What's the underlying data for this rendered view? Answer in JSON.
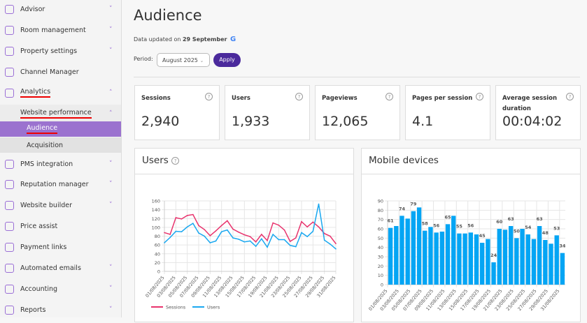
{
  "sidebar": {
    "items": [
      {
        "label": "Advisor",
        "icon": "heart-pulse-icon",
        "chevron": "down"
      },
      {
        "label": "Room management",
        "icon": "calendar-icon",
        "chevron": "down"
      },
      {
        "label": "Property settings",
        "icon": "home-icon",
        "chevron": "down"
      },
      {
        "label": "Channel Manager",
        "icon": "sitemap-icon",
        "chevron": ""
      },
      {
        "label": "Analytics",
        "icon": "target-icon",
        "chevron": "up"
      },
      {
        "label": "Website performance",
        "chevron": "up"
      },
      {
        "label": "Audience"
      },
      {
        "label": "Acquisition"
      },
      {
        "label": "PMS integration",
        "icon": "globe-icon",
        "chevron": "down"
      },
      {
        "label": "Reputation manager",
        "icon": "chat-icon",
        "chevron": "down"
      },
      {
        "label": "Website builder",
        "icon": "monitor-icon",
        "chevron": "down"
      },
      {
        "label": "Price assist",
        "icon": "trend-chart-icon",
        "chevron": ""
      },
      {
        "label": "Payment links",
        "icon": "clipboard-icon",
        "chevron": ""
      },
      {
        "label": "Automated emails",
        "icon": "envelope-icon",
        "chevron": "down"
      },
      {
        "label": "Accounting",
        "icon": "folder-check-icon",
        "chevron": "down"
      },
      {
        "label": "Reports",
        "icon": "bar-chart-icon",
        "chevron": "down"
      }
    ]
  },
  "header": {
    "title": "Audience",
    "updated_prefix": "Data updated on",
    "updated_date": "29 September",
    "period_label": "Period:",
    "period_value": "August 2025",
    "apply": "Apply"
  },
  "cards": [
    {
      "title": "Sessions",
      "value": "2,940"
    },
    {
      "title": "Users",
      "value": "1,933"
    },
    {
      "title": "Pageviews",
      "value": "12,065"
    },
    {
      "title": "Pages per session",
      "value": "4.1"
    },
    {
      "title": "Average session duration",
      "value": "00:04:02"
    }
  ],
  "colors": {
    "accent": "#4b2a9c",
    "sidebar_active": "#9b72cf",
    "sessions": "#e8336d",
    "users": "#1aa8f0",
    "bars": "#04a5f4"
  },
  "chart_data": [
    {
      "type": "line",
      "title": "Users",
      "ylim": [
        0,
        160
      ],
      "yticks": [
        0,
        20,
        40,
        60,
        80,
        100,
        120,
        140,
        160
      ],
      "grid": true,
      "legend": "bottom",
      "x": [
        "01/08/2025",
        "02/08/2025",
        "03/08/2025",
        "04/08/2025",
        "05/08/2025",
        "06/08/2025",
        "07/08/2025",
        "08/08/2025",
        "09/08/2025",
        "10/08/2025",
        "11/08/2025",
        "12/08/2025",
        "13/08/2025",
        "14/08/2025",
        "15/08/2025",
        "16/08/2025",
        "17/08/2025",
        "18/08/2025",
        "19/08/2025",
        "20/08/2025",
        "21/08/2025",
        "22/08/2025",
        "23/08/2025",
        "24/08/2025",
        "25/08/2025",
        "26/08/2025",
        "27/08/2025",
        "28/08/2025",
        "29/08/2025",
        "30/08/2025",
        "31/08/2025"
      ],
      "series": [
        {
          "name": "Sessions",
          "values": [
            88,
            84,
            122,
            119,
            127,
            129,
            104,
            95,
            81,
            92,
            104,
            115,
            96,
            89,
            83,
            79,
            67,
            84,
            70,
            110,
            105,
            94,
            68,
            76,
            113,
            101,
            112,
            101,
            86,
            80,
            63
          ]
        },
        {
          "name": "Users",
          "values": [
            65,
            77,
            91,
            90,
            101,
            109,
            87,
            80,
            65,
            69,
            90,
            94,
            76,
            73,
            67,
            69,
            57,
            74,
            55,
            84,
            72,
            72,
            59,
            56,
            88,
            79,
            91,
            153,
            71,
            62,
            51
          ]
        }
      ]
    },
    {
      "type": "bar",
      "title": "Mobile devices",
      "ylim": [
        0,
        90
      ],
      "yticks": [
        0,
        10,
        20,
        30,
        40,
        50,
        60,
        70,
        80,
        90
      ],
      "grid": true,
      "x": [
        "01/08/2025",
        "02/08/2025",
        "03/08/2025",
        "04/08/2025",
        "05/08/2025",
        "06/08/2025",
        "07/08/2025",
        "08/08/2025",
        "09/08/2025",
        "10/08/2025",
        "11/08/2025",
        "12/08/2025",
        "13/08/2025",
        "14/08/2025",
        "15/08/2025",
        "16/08/2025",
        "17/08/2025",
        "18/08/2025",
        "19/08/2025",
        "20/08/2025",
        "21/08/2025",
        "22/08/2025",
        "23/08/2025",
        "24/08/2025",
        "25/08/2025",
        "26/08/2025",
        "27/08/2025",
        "28/08/2025",
        "29/08/2025",
        "30/08/2025",
        "31/08/2025"
      ],
      "values": [
        61,
        63,
        74,
        71,
        79,
        83,
        58,
        62,
        56,
        57,
        65,
        74,
        55,
        55,
        56,
        54,
        45,
        49,
        24,
        60,
        59,
        63,
        50,
        60,
        54,
        49,
        63,
        48,
        44,
        53,
        34
      ],
      "data_labels": [
        "61",
        null,
        "74",
        null,
        "79",
        null,
        "58",
        null,
        "56",
        null,
        "65",
        null,
        "55",
        null,
        "56",
        null,
        "45",
        null,
        "24",
        "60",
        null,
        "63",
        "50",
        null,
        "54",
        null,
        "63",
        "48",
        null,
        "53",
        "34"
      ]
    }
  ]
}
